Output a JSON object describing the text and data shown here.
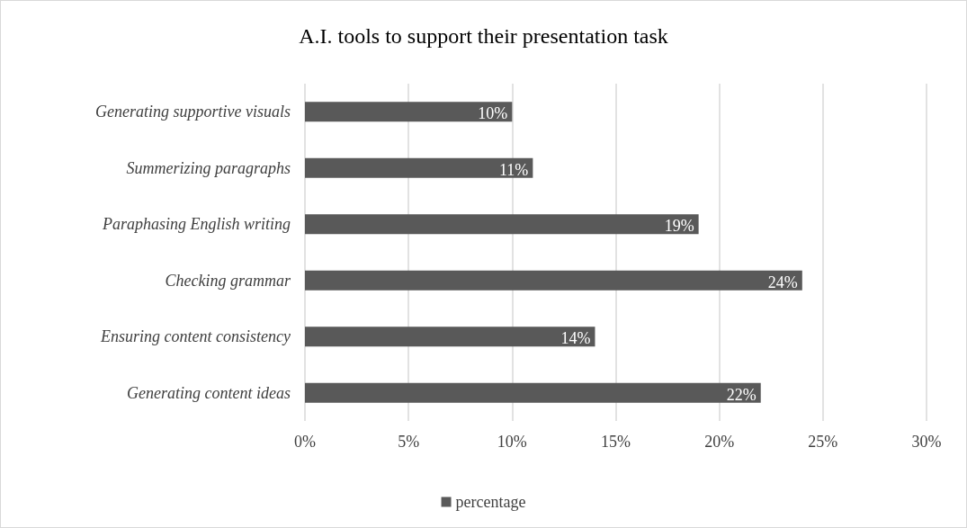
{
  "chart_data": {
    "type": "bar",
    "orientation": "horizontal",
    "title": "A.I. tools to support their presentation task",
    "categories": [
      "Generating supportive visuals",
      "Summerizing paragraphs",
      "Paraphasing English writing",
      "Checking grammar",
      "Ensuring content consistency",
      "Generating content ideas"
    ],
    "series": [
      {
        "name": "percentage",
        "color": "#595959",
        "values": [
          10,
          11,
          19,
          24,
          14,
          22
        ],
        "value_labels": [
          "10%",
          "11%",
          "19%",
          "24%",
          "14%",
          "22%"
        ]
      }
    ],
    "xlim": [
      0,
      30
    ],
    "xticks": [
      {
        "value": 0,
        "label": "0%"
      },
      {
        "value": 5,
        "label": "5%"
      },
      {
        "value": 10,
        "label": "10%"
      },
      {
        "value": 15,
        "label": "15%"
      },
      {
        "value": 20,
        "label": "20%"
      },
      {
        "value": 25,
        "label": "25%"
      },
      {
        "value": 30,
        "label": "30%"
      }
    ],
    "grid": "x",
    "legend": "bottom"
  }
}
